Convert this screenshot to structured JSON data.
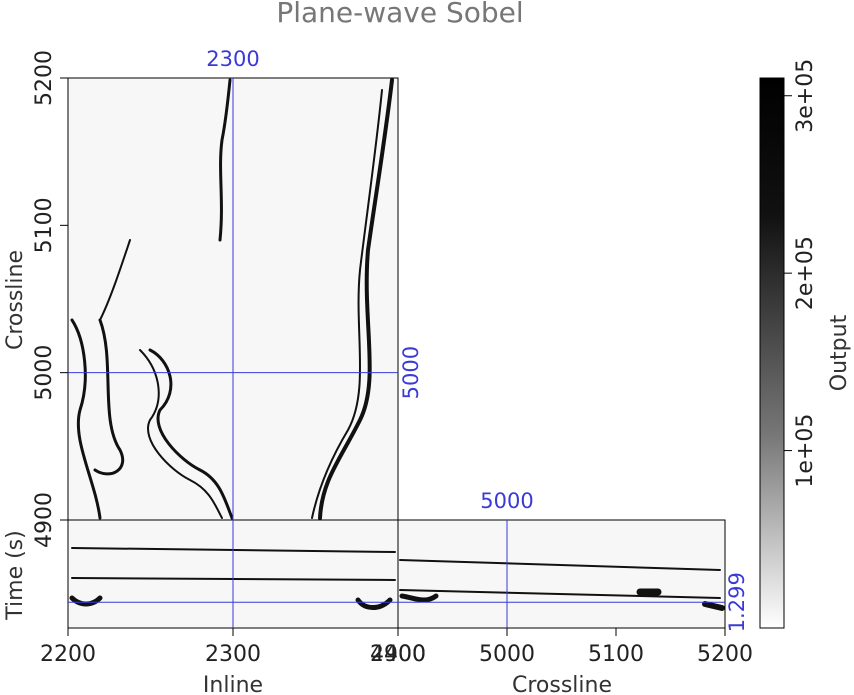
{
  "chart_data": {
    "type": "cube",
    "title": "Plane-wave Sobel",
    "inline": {
      "label": "Inline",
      "lim": [
        2200,
        2400
      ],
      "ticks": [
        2200,
        2300,
        2400
      ]
    },
    "crossline": {
      "label": "Crossline",
      "lim": [
        4900,
        5200
      ],
      "ticks": [
        4900,
        5000,
        5100,
        5200
      ]
    },
    "time": {
      "label": "Time (s)",
      "lim": [
        1.2,
        1.33
      ]
    },
    "slices": {
      "inline": 2300,
      "crossline": 5000,
      "time": 1.299
    },
    "colorbar": {
      "label": "Output",
      "lim": [
        0,
        310000
      ],
      "ticks": [
        {
          "value": 100000,
          "label": "1e+05"
        },
        {
          "value": 200000,
          "label": "2e+05"
        },
        {
          "value": 300000,
          "label": "3e+05"
        }
      ]
    }
  }
}
